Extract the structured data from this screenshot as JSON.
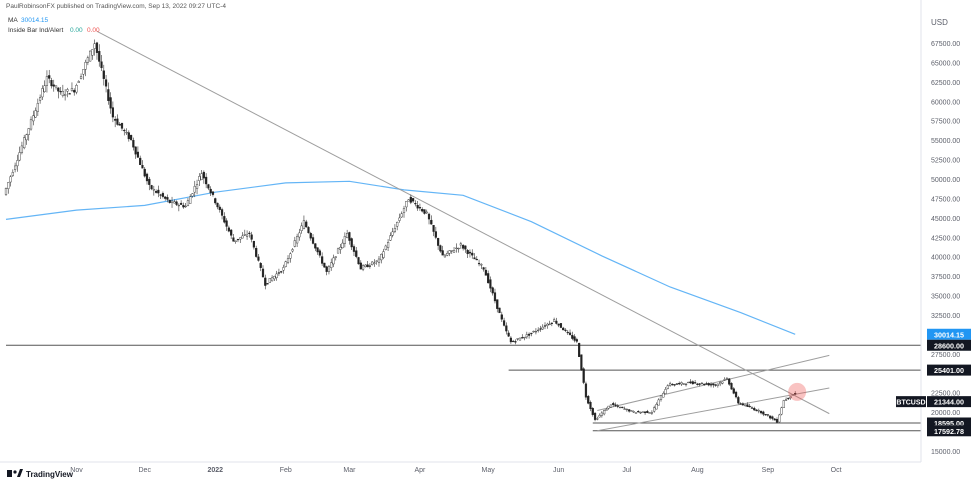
{
  "header": {
    "publisher": "PaulRobinsonFX published on TradingView.com, Sep 13, 2022 09:27 UTC-4",
    "indicator_ma": "MA",
    "indicator_ma_value": "30014.15",
    "indicator_ib": "Inside Bar Ind/Alert",
    "indicator_ib_v1": "0.00",
    "indicator_ib_v2": "0.00"
  },
  "footer": {
    "brand": "TradingView"
  },
  "chart_data": {
    "type": "candlestick",
    "symbol": "BTCUSD",
    "currency": "USD",
    "x_ticks": [
      "Nov",
      "Dec",
      "2022",
      "Feb",
      "Mar",
      "Apr",
      "May",
      "Jun",
      "Jul",
      "Aug",
      "Sep",
      "Oct"
    ],
    "y_ticks": [
      "67500.00",
      "65000.00",
      "62500.00",
      "60000.00",
      "57500.00",
      "55000.00",
      "52500.00",
      "50000.00",
      "47500.00",
      "45000.00",
      "42500.00",
      "40000.00",
      "37500.00",
      "35000.00",
      "32500.00",
      "27500.00",
      "22500.00",
      "20000.00",
      "17500.00",
      "15000.00"
    ],
    "ylim": [
      14000,
      70000
    ],
    "price_labels": [
      {
        "label": "30014.15",
        "value": 30014.15,
        "color": "#2196f3"
      },
      {
        "label": "28600.00",
        "value": 28600,
        "color": "#131722"
      },
      {
        "label": "25401.00",
        "value": 25401,
        "color": "#131722"
      },
      {
        "label": "21344.00",
        "value": 21344,
        "color": "#131722",
        "tag": "BTCUSD"
      },
      {
        "label": "18595.00",
        "value": 18595,
        "color": "#131722"
      },
      {
        "label": "17592.78",
        "value": 17592.78,
        "color": "#131722"
      }
    ],
    "horizontal_levels": [
      28600,
      25401,
      18595,
      17592.78
    ],
    "trend_line": [
      {
        "date": "2021-11-10",
        "price": 69000
      },
      {
        "date": "2022-09-28",
        "price": 19800
      }
    ],
    "channel_lower": [
      {
        "date": "2022-06-18",
        "price": 17600
      },
      {
        "date": "2022-09-28",
        "price": 23100
      }
    ],
    "channel_upper": [
      {
        "date": "2022-06-18",
        "price": 20200
      },
      {
        "date": "2022-09-28",
        "price": 27300
      }
    ],
    "highlight": {
      "date": "2022-09-13",
      "price": 22600
    },
    "moving_average": [
      {
        "date": "2021-10-01",
        "price": 44800
      },
      {
        "date": "2021-11-01",
        "price": 46000
      },
      {
        "date": "2021-12-01",
        "price": 46600
      },
      {
        "date": "2022-01-01",
        "price": 48300
      },
      {
        "date": "2022-02-01",
        "price": 49500
      },
      {
        "date": "2022-03-01",
        "price": 49700
      },
      {
        "date": "2022-03-25",
        "price": 48600
      },
      {
        "date": "2022-04-20",
        "price": 47900
      },
      {
        "date": "2022-05-20",
        "price": 44500
      },
      {
        "date": "2022-06-20",
        "price": 40100
      },
      {
        "date": "2022-07-20",
        "price": 36100
      },
      {
        "date": "2022-08-20",
        "price": 32800
      },
      {
        "date": "2022-09-13",
        "price": 30014
      }
    ],
    "price_path": [
      {
        "date": "2021-10-01",
        "price": 48000
      },
      {
        "date": "2021-10-10",
        "price": 55000
      },
      {
        "date": "2021-10-20",
        "price": 63000
      },
      {
        "date": "2021-10-26",
        "price": 61000
      },
      {
        "date": "2021-11-01",
        "price": 61500
      },
      {
        "date": "2021-11-10",
        "price": 67500
      },
      {
        "date": "2021-11-18",
        "price": 58000
      },
      {
        "date": "2021-11-26",
        "price": 55000
      },
      {
        "date": "2021-12-04",
        "price": 49000
      },
      {
        "date": "2021-12-13",
        "price": 47000
      },
      {
        "date": "2021-12-20",
        "price": 46500
      },
      {
        "date": "2021-12-27",
        "price": 50800
      },
      {
        "date": "2022-01-03",
        "price": 46500
      },
      {
        "date": "2022-01-10",
        "price": 42000
      },
      {
        "date": "2022-01-17",
        "price": 43000
      },
      {
        "date": "2022-01-24",
        "price": 36500
      },
      {
        "date": "2022-02-01",
        "price": 38500
      },
      {
        "date": "2022-02-10",
        "price": 44500
      },
      {
        "date": "2022-02-20",
        "price": 38000
      },
      {
        "date": "2022-03-01",
        "price": 43000
      },
      {
        "date": "2022-03-07",
        "price": 38500
      },
      {
        "date": "2022-03-15",
        "price": 39500
      },
      {
        "date": "2022-03-28",
        "price": 47500
      },
      {
        "date": "2022-04-05",
        "price": 45500
      },
      {
        "date": "2022-04-12",
        "price": 40000
      },
      {
        "date": "2022-04-20",
        "price": 41500
      },
      {
        "date": "2022-04-30",
        "price": 38500
      },
      {
        "date": "2022-05-09",
        "price": 31000
      },
      {
        "date": "2022-05-12",
        "price": 29000
      },
      {
        "date": "2022-05-20",
        "price": 30000
      },
      {
        "date": "2022-05-31",
        "price": 31800
      },
      {
        "date": "2022-06-10",
        "price": 29000
      },
      {
        "date": "2022-06-14",
        "price": 22000
      },
      {
        "date": "2022-06-18",
        "price": 19000
      },
      {
        "date": "2022-06-25",
        "price": 21000
      },
      {
        "date": "2022-07-05",
        "price": 20000
      },
      {
        "date": "2022-07-13",
        "price": 20000
      },
      {
        "date": "2022-07-20",
        "price": 23500
      },
      {
        "date": "2022-07-30",
        "price": 23800
      },
      {
        "date": "2022-08-10",
        "price": 23500
      },
      {
        "date": "2022-08-15",
        "price": 24300
      },
      {
        "date": "2022-08-20",
        "price": 21200
      },
      {
        "date": "2022-08-30",
        "price": 20000
      },
      {
        "date": "2022-09-06",
        "price": 18800
      },
      {
        "date": "2022-09-09",
        "price": 21500
      },
      {
        "date": "2022-09-13",
        "price": 22300
      }
    ]
  }
}
